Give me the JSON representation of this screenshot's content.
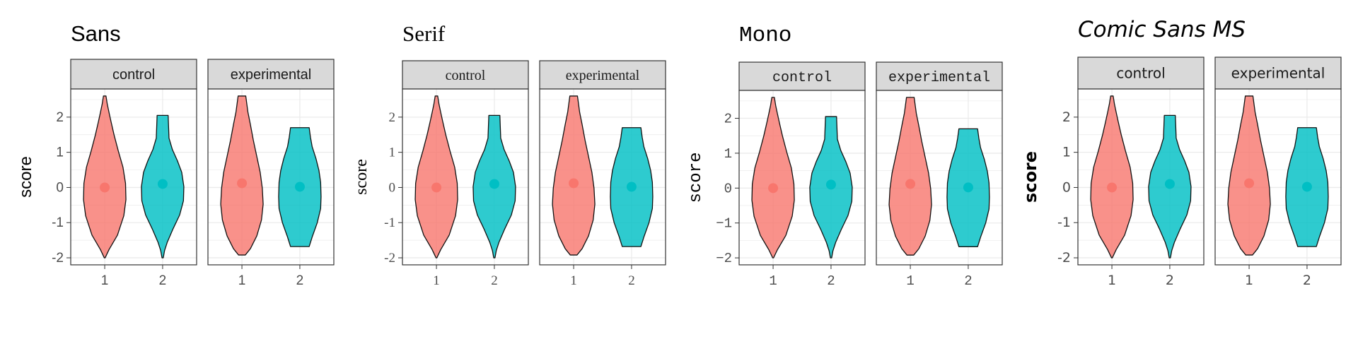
{
  "colors": {
    "group1": "#F8766D",
    "group2": "#00BFC4",
    "strip_fill": "#D9D9D9",
    "grid": "#EBEBEB",
    "panel_border": "#333333",
    "tick_text": "#4D4D4D"
  },
  "chart_data": [
    {
      "type": "violin",
      "title": "Sans",
      "font": "sans",
      "ylabel": "score",
      "ylim": [
        -2.2,
        2.8
      ],
      "yticks": [
        -2,
        -1,
        0,
        1,
        2
      ],
      "ytick_labels": [
        "-2",
        "-1",
        "0",
        "1",
        "2"
      ],
      "categories": [
        "1",
        "2"
      ],
      "facets": [
        {
          "label": "control",
          "groups": [
            {
              "x": "1",
              "mean": 0.0,
              "min": -2.0,
              "max": 2.6
            },
            {
              "x": "2",
              "mean": 0.1,
              "min": -2.0,
              "max": 2.05
            }
          ]
        },
        {
          "label": "experimental",
          "groups": [
            {
              "x": "1",
              "mean": 0.12,
              "min": -1.92,
              "max": 2.6
            },
            {
              "x": "2",
              "mean": 0.02,
              "min": -1.68,
              "max": 1.7
            }
          ]
        }
      ]
    },
    {
      "type": "violin",
      "title": "Serif",
      "font": "serif",
      "ylabel": "score",
      "ylim": [
        -2.2,
        2.8
      ],
      "yticks": [
        -2,
        -1,
        0,
        1,
        2
      ],
      "ytick_labels": [
        "-2",
        "-1",
        "0",
        "1",
        "2"
      ],
      "categories": [
        "1",
        "2"
      ],
      "facets": [
        {
          "label": "control",
          "groups": [
            {
              "x": "1",
              "mean": 0.0,
              "min": -2.0,
              "max": 2.6
            },
            {
              "x": "2",
              "mean": 0.1,
              "min": -2.0,
              "max": 2.05
            }
          ]
        },
        {
          "label": "experimental",
          "groups": [
            {
              "x": "1",
              "mean": 0.12,
              "min": -1.92,
              "max": 2.6
            },
            {
              "x": "2",
              "mean": 0.02,
              "min": -1.68,
              "max": 1.7
            }
          ]
        }
      ]
    },
    {
      "type": "violin",
      "title": "Mono",
      "font": "mono",
      "ylabel": "score",
      "ylim": [
        -2.2,
        2.8
      ],
      "yticks": [
        -2,
        -1,
        0,
        1,
        2
      ],
      "ytick_labels": [
        "−2",
        "−1",
        "0",
        "1",
        "2"
      ],
      "categories": [
        "1",
        "2"
      ],
      "facets": [
        {
          "label": "control",
          "groups": [
            {
              "x": "1",
              "mean": 0.0,
              "min": -2.0,
              "max": 2.6
            },
            {
              "x": "2",
              "mean": 0.1,
              "min": -2.0,
              "max": 2.05
            }
          ]
        },
        {
          "label": "experimental",
          "groups": [
            {
              "x": "1",
              "mean": 0.12,
              "min": -1.92,
              "max": 2.6
            },
            {
              "x": "2",
              "mean": 0.02,
              "min": -1.68,
              "max": 1.7
            }
          ]
        }
      ]
    },
    {
      "type": "violin",
      "title": "Comic Sans MS",
      "font": "comic",
      "ylabel": "score",
      "ylim": [
        -2.2,
        2.8
      ],
      "yticks": [
        -2,
        -1,
        0,
        1,
        2
      ],
      "ytick_labels": [
        "-2",
        "-1",
        "0",
        "1",
        "2"
      ],
      "categories": [
        "1",
        "2"
      ],
      "facets": [
        {
          "label": "control",
          "groups": [
            {
              "x": "1",
              "mean": 0.0,
              "min": -2.0,
              "max": 2.6
            },
            {
              "x": "2",
              "mean": 0.1,
              "min": -2.0,
              "max": 2.05
            }
          ]
        },
        {
          "label": "experimental",
          "groups": [
            {
              "x": "1",
              "mean": 0.12,
              "min": -1.92,
              "max": 2.6
            },
            {
              "x": "2",
              "mean": 0.02,
              "min": -1.68,
              "max": 1.7
            }
          ]
        }
      ]
    }
  ]
}
